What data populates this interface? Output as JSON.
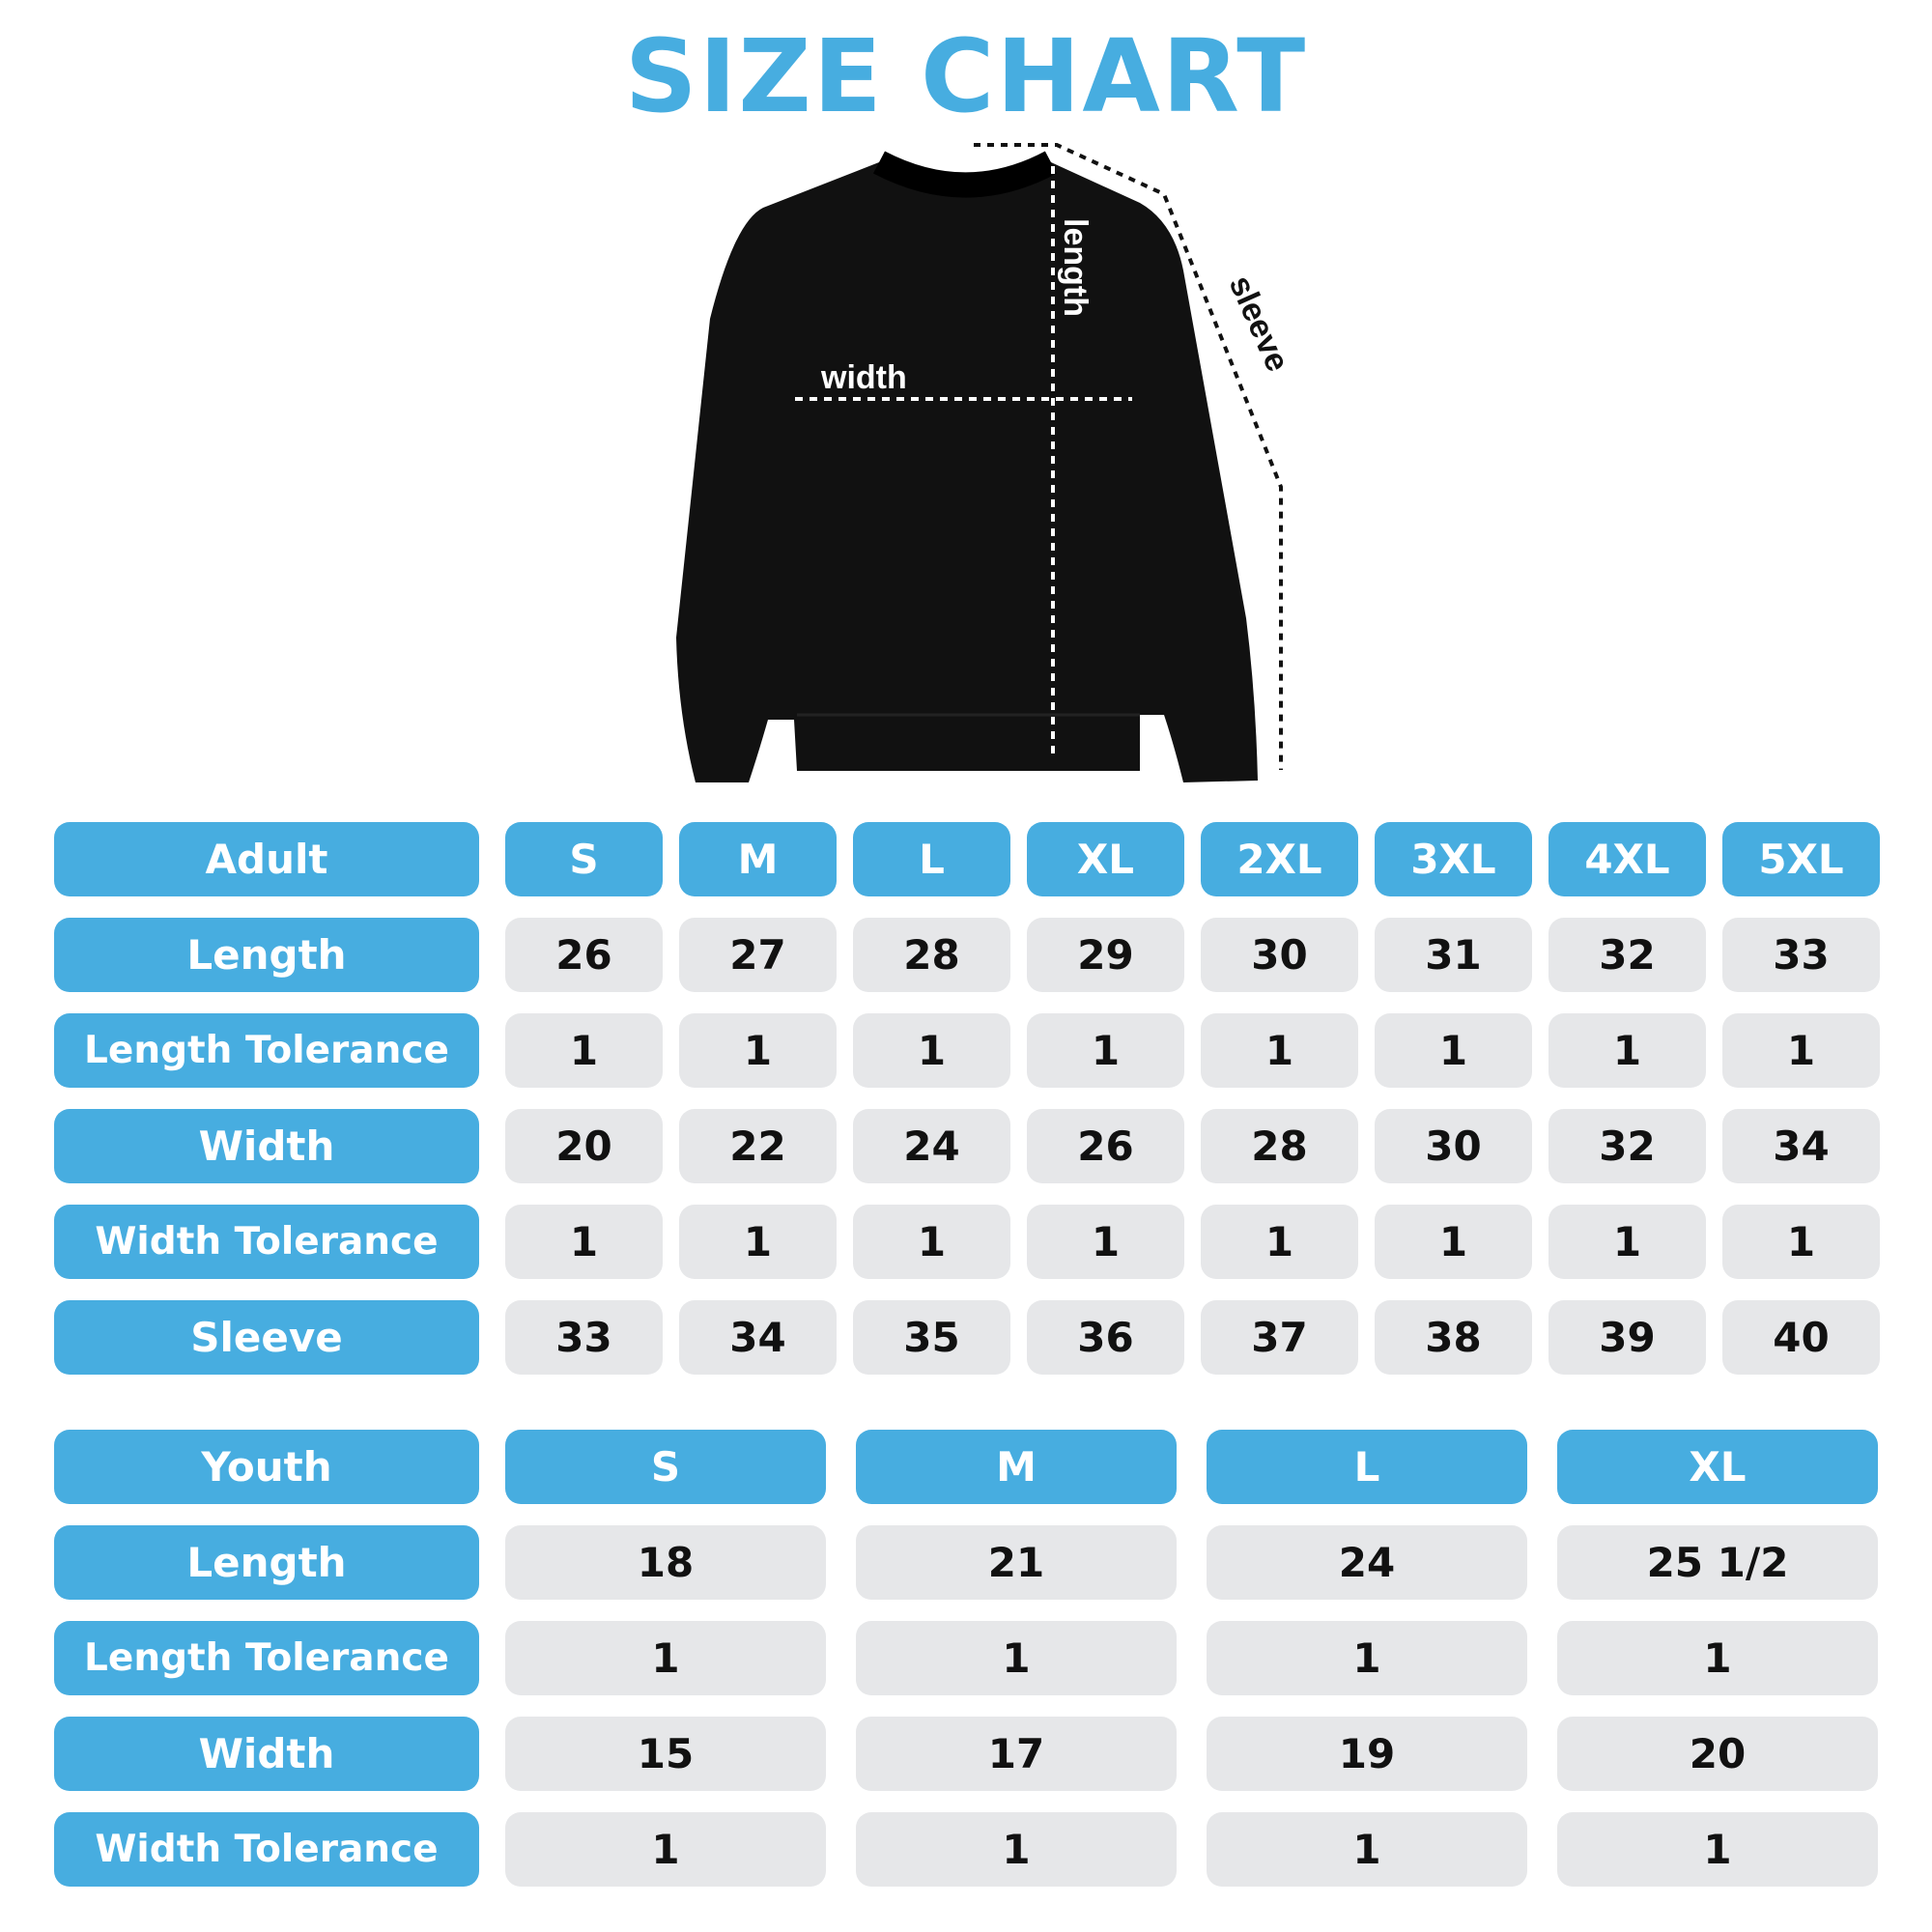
{
  "title": "SIZE CHART",
  "diagram_labels": {
    "width": "width",
    "length": "length",
    "sleeve": "sleeve"
  },
  "colors": {
    "accent": "#47ade0",
    "cell": "#e6e7e9",
    "garment": "#111111"
  },
  "adult": {
    "header": "Adult",
    "sizes": [
      "S",
      "M",
      "L",
      "XL",
      "2XL",
      "3XL",
      "4XL",
      "5XL"
    ],
    "rows": [
      {
        "label": "Length",
        "values": [
          "26",
          "27",
          "28",
          "29",
          "30",
          "31",
          "32",
          "33"
        ]
      },
      {
        "label": "Length Tolerance",
        "values": [
          "1",
          "1",
          "1",
          "1",
          "1",
          "1",
          "1",
          "1"
        ]
      },
      {
        "label": "Width",
        "values": [
          "20",
          "22",
          "24",
          "26",
          "28",
          "30",
          "32",
          "34"
        ]
      },
      {
        "label": "Width Tolerance",
        "values": [
          "1",
          "1",
          "1",
          "1",
          "1",
          "1",
          "1",
          "1"
        ]
      },
      {
        "label": "Sleeve",
        "values": [
          "33",
          "34",
          "35",
          "36",
          "37",
          "38",
          "39",
          "40"
        ]
      }
    ]
  },
  "youth": {
    "header": "Youth",
    "sizes": [
      "S",
      "M",
      "L",
      "XL"
    ],
    "rows": [
      {
        "label": "Length",
        "values": [
          "18",
          "21",
          "24",
          "25 1/2"
        ]
      },
      {
        "label": "Length Tolerance",
        "values": [
          "1",
          "1",
          "1",
          "1"
        ]
      },
      {
        "label": "Width",
        "values": [
          "15",
          "17",
          "19",
          "20"
        ]
      },
      {
        "label": "Width Tolerance",
        "values": [
          "1",
          "1",
          "1",
          "1"
        ]
      }
    ]
  }
}
